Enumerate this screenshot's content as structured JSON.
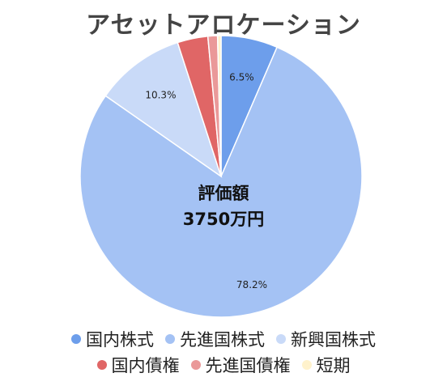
{
  "chart_data": {
    "type": "pie",
    "title": "アセットアロケーション",
    "center_label": {
      "line1": "評価額",
      "line2": "3750万円"
    },
    "slices": [
      {
        "name": "国内株式",
        "value": 6.5,
        "label": "6.5%",
        "color": "#6d9eeb"
      },
      {
        "name": "先進国株式",
        "value": 78.2,
        "label": "78.2%",
        "color": "#a4c2f4"
      },
      {
        "name": "新興国株式",
        "value": 10.3,
        "label": "10.3%",
        "color": "#c9daf8"
      },
      {
        "name": "国内債権",
        "value": 3.5,
        "label": "",
        "color": "#e06666"
      },
      {
        "name": "先進国債権",
        "value": 1.1,
        "label": "",
        "color": "#ea9999"
      },
      {
        "name": "短期",
        "value": 0.4,
        "label": "",
        "color": "#fff2cc"
      }
    ],
    "legend_placement": "bottom"
  }
}
